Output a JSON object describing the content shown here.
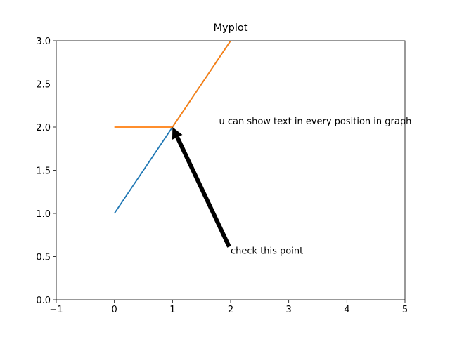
{
  "chart_data": {
    "type": "line",
    "title": "Myplot",
    "x": [
      0,
      1,
      2
    ],
    "series": [
      {
        "color": "#1f77b4",
        "values": [
          1,
          2,
          3
        ]
      },
      {
        "color": "#ff7f0e",
        "values": [
          2,
          2,
          3
        ]
      }
    ],
    "xlim": [
      -1,
      5
    ],
    "xticks": [
      {
        "value": -1,
        "label": "−1"
      },
      0,
      1,
      2,
      3,
      4,
      5
    ],
    "ylim": [
      0,
      3
    ],
    "yticks": [
      {
        "value": 0,
        "label": "0.0"
      },
      {
        "value": 0.5,
        "label": "0.5"
      },
      {
        "value": 1,
        "label": "1.0"
      },
      {
        "value": 1.5,
        "label": "1.5"
      },
      {
        "value": 2,
        "label": "2.0"
      },
      {
        "value": 2.5,
        "label": "2.5"
      },
      {
        "value": 3,
        "label": "3.0"
      }
    ],
    "annotations": [
      {
        "text": "check this point",
        "xy": [
          1,
          2
        ],
        "xytext": [
          2,
          0.5
        ]
      },
      {
        "text": "u can show text in every position in graph",
        "xytext": [
          1.8,
          2
        ]
      }
    ]
  }
}
